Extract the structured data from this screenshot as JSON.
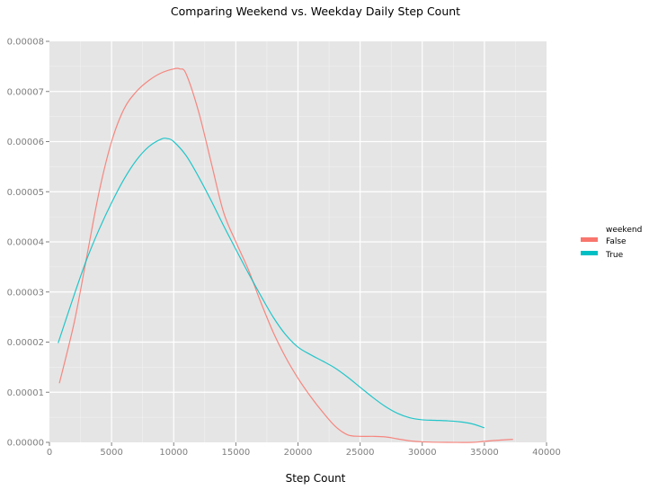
{
  "chart_data": {
    "type": "line",
    "subtype": "density",
    "title": "Comparing Weekend vs. Weekday Daily Step Count",
    "xlabel": "Step Count",
    "ylabel": "",
    "xlim": [
      0,
      40000
    ],
    "ylim": [
      0,
      8e-05
    ],
    "x_ticks": [
      0,
      5000,
      10000,
      15000,
      20000,
      25000,
      30000,
      35000,
      40000
    ],
    "x_tick_labels": [
      "0",
      "5000",
      "10000",
      "15000",
      "20000",
      "25000",
      "30000",
      "35000",
      "40000"
    ],
    "y_ticks": [
      0,
      1e-05,
      2e-05,
      3e-05,
      4e-05,
      5e-05,
      6e-05,
      7e-05,
      8e-05
    ],
    "y_tick_labels": [
      "0.00000",
      "0.00001",
      "0.00002",
      "0.00003",
      "0.00004",
      "0.00005",
      "0.00006",
      "0.00007",
      "0.00008"
    ],
    "grid": true,
    "legend": {
      "title": "weekend",
      "position": "right",
      "entries": [
        "False",
        "True"
      ]
    },
    "series": [
      {
        "name": "False",
        "color": "#f8766d",
        "x": [
          800,
          2000,
          3000,
          4000,
          5000,
          6000,
          7000,
          8000,
          9000,
          10000,
          10500,
          11000,
          12000,
          13000,
          14000,
          15000,
          16000,
          17000,
          18000,
          19000,
          20000,
          21000,
          22000,
          23000,
          24000,
          25000,
          26000,
          27000,
          28000,
          29000,
          30000,
          32000,
          34000,
          35000,
          36000,
          37300
        ],
        "values": [
          1.18e-05,
          2.4e-05,
          3.7e-05,
          5e-05,
          6e-05,
          6.65e-05,
          7e-05,
          7.22e-05,
          7.37e-05,
          7.45e-05,
          7.45e-05,
          7.35e-05,
          6.6e-05,
          5.6e-05,
          4.6e-05,
          4e-05,
          3.45e-05,
          2.8e-05,
          2.2e-05,
          1.7e-05,
          1.28e-05,
          9.2e-06,
          6e-06,
          3.2e-06,
          1.5e-06,
          1.2e-06,
          1.2e-06,
          1.1e-06,
          7e-07,
          3e-07,
          1e-07,
          0.0,
          0.0,
          2e-07,
          4e-07,
          6e-07
        ]
      },
      {
        "name": "True",
        "color": "#00bfc4",
        "x": [
          700,
          2000,
          3000,
          4000,
          5000,
          6000,
          7000,
          8000,
          9000,
          9500,
          10000,
          11000,
          12000,
          13000,
          14000,
          15000,
          16000,
          17000,
          18000,
          19000,
          20000,
          21000,
          22000,
          23000,
          24000,
          25000,
          26000,
          27000,
          28000,
          29000,
          30000,
          31000,
          32000,
          33000,
          34000,
          35000
        ],
        "values": [
          1.98e-05,
          2.95e-05,
          3.65e-05,
          4.25e-05,
          4.78e-05,
          5.25e-05,
          5.63e-05,
          5.9e-05,
          6.05e-05,
          6.06e-05,
          6e-05,
          5.72e-05,
          5.3e-05,
          4.83e-05,
          4.33e-05,
          3.85e-05,
          3.38e-05,
          2.93e-05,
          2.5e-05,
          2.15e-05,
          1.9e-05,
          1.75e-05,
          1.62e-05,
          1.48e-05,
          1.3e-05,
          1.1e-05,
          9e-06,
          7.2e-06,
          5.8e-06,
          4.9e-06,
          4.5e-06,
          4.4e-06,
          4.3e-06,
          4.1e-06,
          3.7e-06,
          2.9e-06
        ]
      }
    ]
  }
}
